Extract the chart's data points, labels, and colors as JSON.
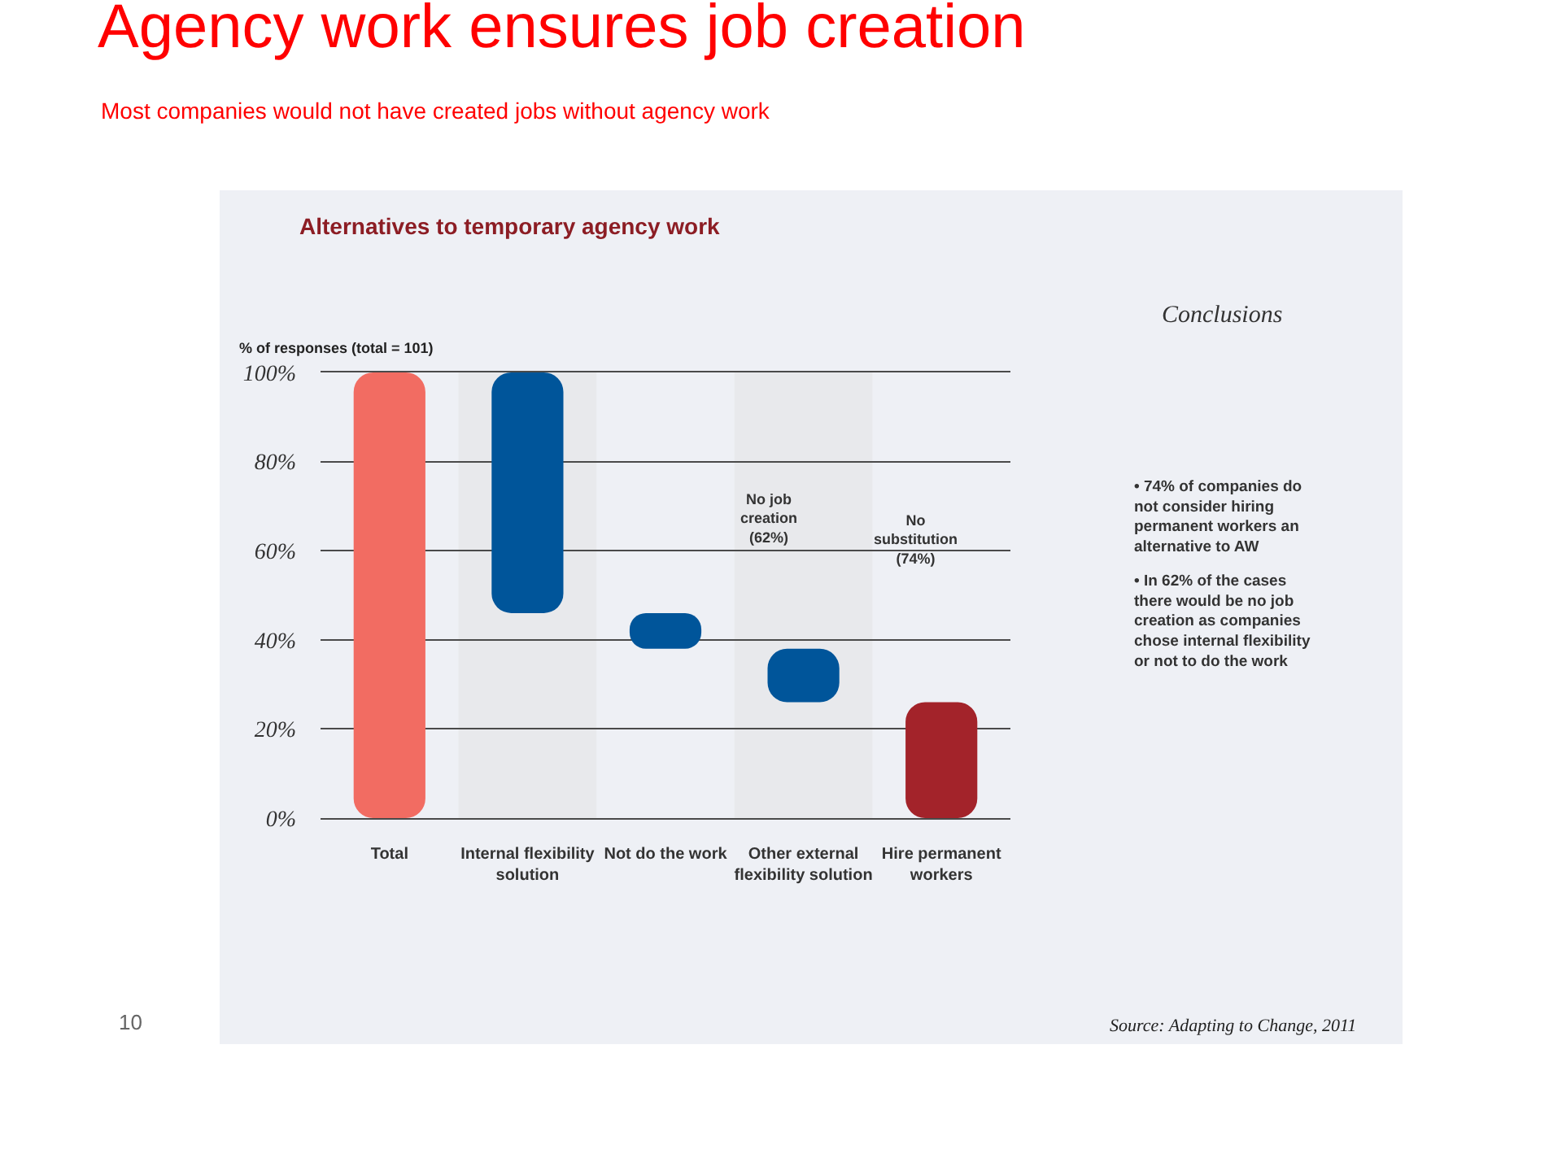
{
  "chart_data": {
    "type": "bar",
    "title": "Agency work ensures job creation",
    "subtitle": "Most companies would not have created jobs without agency work",
    "ylabel": "% of responses (total = 101)",
    "categories": [
      "Total",
      "Internal flexibility solution",
      "Not do the work",
      "Other external flexibility solution",
      "Hire permanent workers"
    ],
    "values": [
      100,
      54,
      8,
      12,
      26
    ],
    "base": [
      0,
      46,
      38,
      26,
      0
    ],
    "colors": [
      "#f26c62",
      "#00559a",
      "#00559a",
      "#00559a",
      "#a3232a"
    ],
    "ylim": [
      0,
      100
    ],
    "yticks": [
      {
        "value": 0,
        "label": "0%"
      },
      {
        "value": 20,
        "label": "20%"
      },
      {
        "value": 40,
        "label": "40%"
      },
      {
        "value": 60,
        "label": "60%"
      },
      {
        "value": 80,
        "label": "80%"
      },
      {
        "value": 100,
        "label": "100%"
      }
    ],
    "grid": "y",
    "bands": [
      {
        "axis": "x",
        "from": "Internal flexibility solution",
        "to": "Internal flexibility solution",
        "color": "#e8e9ec"
      },
      {
        "axis": "x",
        "from": "Other external flexibility solution",
        "to": "Other external flexibility solution",
        "color": "#e8e9ec"
      }
    ],
    "annotations": [
      "Alternatives to temporary agency work",
      "No job creation (62%)",
      "No substitution (74%)",
      "Conclusions",
      "• 74% of companies do not consider hiring permanent workers an alternative to AW",
      "• In 62% of the cases there would be no job creation as companies chose internal flexibility or not to do the work",
      "Source: Adapting to Change, 2011",
      "10"
    ]
  }
}
